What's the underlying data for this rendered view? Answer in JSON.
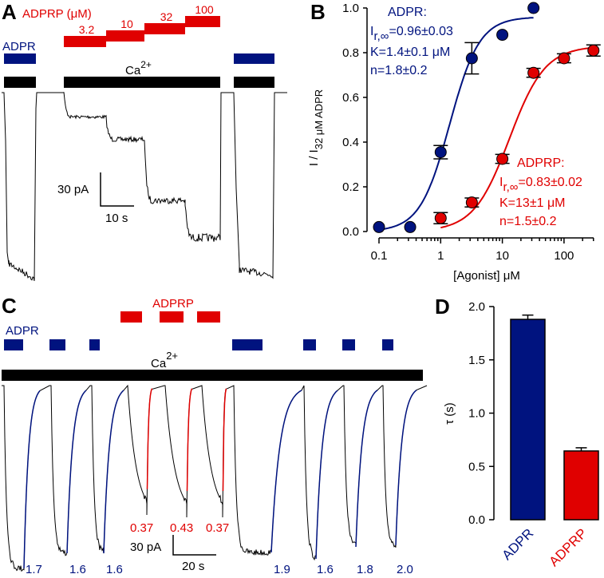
{
  "colors": {
    "adpr": "#00137f",
    "adprp": "#e00000",
    "black": "#000000"
  },
  "panelA": {
    "letter": "A",
    "adprp_title": "ADPRP (μM)",
    "adprp_steps": [
      "3.2",
      "10",
      "32",
      "100"
    ],
    "adpr_label": "ADPR",
    "ca_label": "Ca",
    "ca_sup": "2+",
    "scale_y": "30 pA",
    "scale_x": "10 s"
  },
  "panelC": {
    "letter": "C",
    "adprp_label": "ADPRP",
    "adpr_label": "ADPR",
    "ca_label": "Ca",
    "ca_sup": "2+",
    "scale_y": "30 pA",
    "scale_x": "20 s",
    "tau_adpr": [
      "1.7",
      "1.6",
      "1.6",
      "1.9",
      "1.6",
      "1.8",
      "2.0"
    ],
    "tau_adprp": [
      "0.37",
      "0.43",
      "0.37"
    ]
  },
  "chart_data": [
    {
      "panel": "B",
      "type": "scatter",
      "xscale": "log",
      "xlabel": "[Agonist] μM",
      "ylabel": "I / I 32 μM ADPR",
      "xlim": [
        0.1,
        300
      ],
      "ylim": [
        0.0,
        1.0
      ],
      "xticks": [
        "0.1",
        "1",
        "10",
        "100"
      ],
      "yticks": [
        "0.0",
        "0.2",
        "0.4",
        "0.6",
        "0.8",
        "1.0"
      ],
      "series": [
        {
          "name": "ADPR",
          "x": [
            0.1,
            0.32,
            1,
            3.2,
            10,
            32
          ],
          "y": [
            0.02,
            0.02,
            0.355,
            0.775,
            0.88,
            1.0
          ],
          "err": [
            0.0,
            0.0,
            0.03,
            0.07,
            0.0,
            0.0
          ],
          "fit": {
            "Imax": 0.96,
            "K": 1.4,
            "n": 1.8
          },
          "annotation": [
            "ADPR:",
            "I",
            "r,∞",
            "=0.96±0.03",
            "K=1.4±0.1 μM",
            "n=1.8±0.2"
          ]
        },
        {
          "name": "ADPRP",
          "x": [
            1,
            3.2,
            10,
            32,
            100,
            300
          ],
          "y": [
            0.06,
            0.13,
            0.325,
            0.71,
            0.775,
            0.81
          ],
          "err": [
            0.025,
            0.02,
            0.02,
            0.02,
            0.02,
            0.025
          ],
          "fit": {
            "Imax": 0.83,
            "K": 13,
            "n": 1.5
          },
          "annotation": [
            "ADPRP:",
            "I",
            "r,∞",
            "=0.83±0.02",
            "K=13±1 μM",
            "n=1.5±0.2"
          ]
        }
      ]
    },
    {
      "panel": "D",
      "type": "bar",
      "categories": [
        "ADPR",
        "ADPRP"
      ],
      "values": [
        1.88,
        0.645
      ],
      "errors": [
        0.04,
        0.03
      ],
      "ylabel": "τ (s)",
      "ylim": [
        0.0,
        2.0
      ],
      "yticks": [
        "0.0",
        "0.5",
        "1.0",
        "1.5",
        "2.0"
      ]
    }
  ]
}
